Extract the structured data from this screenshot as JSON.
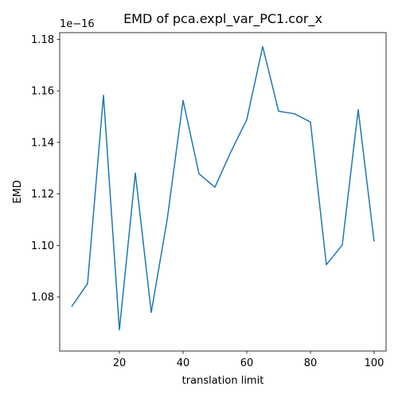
{
  "chart_data": {
    "type": "line",
    "title": "EMD of pca.expl_var_PC1.cor_x",
    "xlabel": "translation limit",
    "ylabel": "EMD",
    "y_offset_label": "1e−16",
    "xlim": [
      1.25,
      103.75
    ],
    "ylim": [
      1.059,
      1.1826
    ],
    "x_ticks": [
      20,
      40,
      60,
      80,
      100
    ],
    "x_tick_labels": [
      "20",
      "40",
      "60",
      "80",
      "100"
    ],
    "y_ticks": [
      1.08,
      1.1,
      1.12,
      1.14,
      1.16,
      1.18
    ],
    "y_tick_labels": [
      "1.08",
      "1.10",
      "1.12",
      "1.14",
      "1.16",
      "1.18"
    ],
    "grid": false,
    "series": [
      {
        "color": "#1f77b4",
        "x": [
          5,
          10,
          15,
          20,
          25,
          30,
          35,
          40,
          45,
          50,
          55,
          60,
          65,
          70,
          75,
          80,
          85,
          90,
          95,
          100
        ],
        "y": [
          1.0762,
          1.0852,
          1.1583,
          1.0672,
          1.1281,
          1.074,
          1.11,
          1.1563,
          1.1278,
          1.1226,
          1.1363,
          1.1488,
          1.1772,
          1.1521,
          1.1511,
          1.1479,
          1.0925,
          1.1002,
          1.1527,
          1.1015
        ]
      }
    ]
  }
}
